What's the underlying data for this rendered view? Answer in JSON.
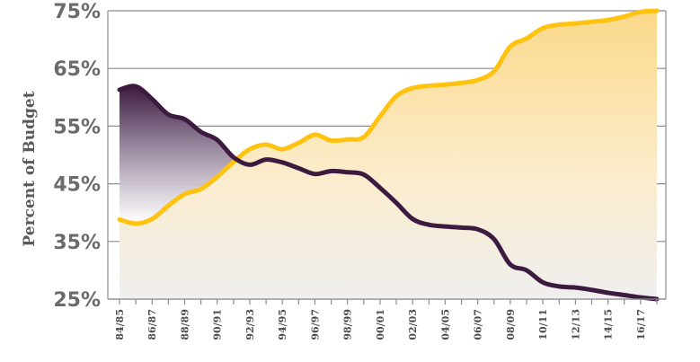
{
  "chart_data": {
    "type": "area",
    "title": "",
    "xlabel": "",
    "ylabel": "Percent of Budget",
    "ylim": [
      25,
      75
    ],
    "y_ticks": [
      25,
      35,
      45,
      55,
      65,
      75
    ],
    "y_tick_labels": [
      "25%",
      "35%",
      "45%",
      "55%",
      "65%",
      "75%"
    ],
    "grid": true,
    "x_tick_labels": [
      "84/85",
      "86/87",
      "88/89",
      "90/91",
      "92/93",
      "94/95",
      "96/97",
      "98/99",
      "00/01",
      "02/03",
      "04/05",
      "06/07",
      "08/09",
      "10/11",
      "12/13",
      "14/15",
      "16/17"
    ],
    "x": [
      "84/85",
      "85/86",
      "86/87",
      "87/88",
      "88/89",
      "89/90",
      "90/91",
      "91/92",
      "92/93",
      "93/94",
      "94/95",
      "95/96",
      "96/97",
      "97/98",
      "98/99",
      "99/00",
      "00/01",
      "01/02",
      "02/03",
      "03/04",
      "04/05",
      "05/06",
      "06/07",
      "07/08",
      "08/09",
      "09/10",
      "10/11",
      "11/12",
      "12/13",
      "13/14",
      "14/15",
      "15/16",
      "16/17",
      "17/18"
    ],
    "series": [
      {
        "color": "#ffc20e",
        "values": [
          38.8,
          38.1,
          38.9,
          41.2,
          43.2,
          44.1,
          46.2,
          48.8,
          51.0,
          51.8,
          51.0,
          52.1,
          53.5,
          52.5,
          52.7,
          53.1,
          56.7,
          60.2,
          61.6,
          62.0,
          62.2,
          62.5,
          63.0,
          64.5,
          68.8,
          70.2,
          72.0,
          72.6,
          72.8,
          73.1,
          73.4,
          74.0,
          74.8,
          75.0
        ]
      },
      {
        "color": "#3d1b40",
        "values": [
          61.3,
          61.9,
          59.7,
          57.0,
          56.2,
          54.0,
          52.6,
          49.6,
          48.3,
          49.2,
          48.7,
          47.7,
          46.7,
          47.2,
          47.0,
          46.6,
          44.3,
          41.7,
          38.9,
          37.9,
          37.6,
          37.4,
          37.1,
          35.4,
          31.0,
          30.0,
          27.9,
          27.2,
          27.0,
          26.6,
          26.1,
          25.7,
          25.3,
          25.0
        ]
      }
    ]
  }
}
